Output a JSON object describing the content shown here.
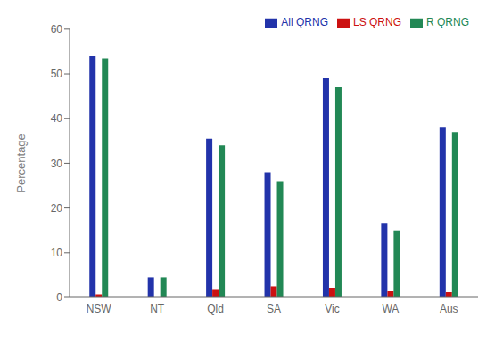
{
  "chart_data": {
    "type": "bar",
    "categories": [
      "NSW",
      "NT",
      "Qld",
      "SA",
      "Vic",
      "WA",
      "Aus"
    ],
    "series": [
      {
        "name": "All QRNG",
        "color": "#2233aa",
        "values": [
          54.0,
          4.5,
          35.5,
          28.0,
          49.0,
          16.5,
          38.0
        ]
      },
      {
        "name": "LS QRNG",
        "color": "#cc1111",
        "values": [
          0.7,
          0.0,
          1.7,
          2.5,
          2.0,
          1.4,
          1.2
        ]
      },
      {
        "name": "R QRNG",
        "color": "#228855",
        "values": [
          53.5,
          4.5,
          34.0,
          26.0,
          47.0,
          15.0,
          37.0
        ]
      }
    ],
    "ylabel": "Percentage",
    "ylim": [
      0,
      60
    ],
    "yticks": [
      0,
      10,
      20,
      30,
      40,
      50,
      60
    ],
    "grid": false,
    "legend": "upper right"
  }
}
